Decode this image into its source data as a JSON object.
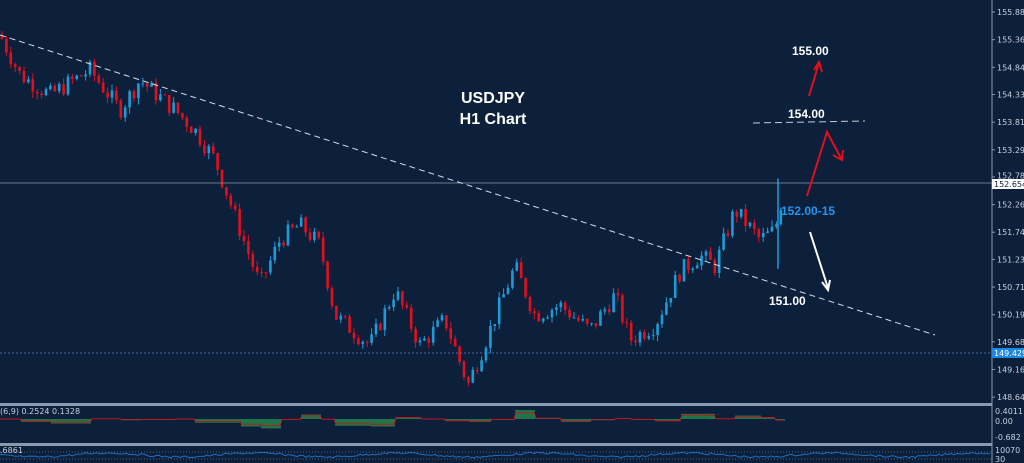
{
  "chart_data": {
    "type": "candlestick",
    "symbol_title": "USDJPY",
    "timeframe_title": "H1 Chart",
    "y_ticks": [
      "155.880",
      "155.360",
      "154.840",
      "154.330",
      "153.810",
      "153.290",
      "152.780",
      "152.260",
      "151.740",
      "151.230",
      "150.710",
      "150.190",
      "149.680",
      "149.160",
      "148.640"
    ],
    "ylim": [
      148.4,
      156.1
    ],
    "price_path": [
      155.45,
      154.7,
      154.32,
      154.79,
      154.04,
      154.6,
      154.04,
      153.66,
      153.1,
      151.78,
      150.75,
      151.6,
      151.88,
      151.5,
      150.18,
      149.62,
      150.65,
      149.62,
      150.1,
      148.87,
      149.9,
      151.1,
      150.18,
      150.37,
      149.9,
      150.56,
      149.72,
      150.0,
      151.0,
      151.3,
      151.1,
      152.16,
      151.6,
      151.78,
      152.65
    ],
    "current_price": "152.654",
    "marked_level": "149.429",
    "annotations": {
      "target_high": "155.00",
      "resistance": "154.00",
      "current_zone": "152.00-15",
      "support": "151.00"
    },
    "colors": {
      "background": "#0c1f3b",
      "bull": "#1e9bd7",
      "bear": "#e0101e",
      "current_label_bg": "#ffffff",
      "level_label_bg": "#1e88e5",
      "zone_text": "#2196f3"
    },
    "macd": {
      "label": "(6,9) 0.2524 0.1328",
      "ticks": [
        "0.4011",
        "0.00",
        "-0.682"
      ]
    },
    "oscillator": {
      "label": ".6861",
      "ticks": [
        "100",
        "70",
        "30"
      ]
    }
  }
}
